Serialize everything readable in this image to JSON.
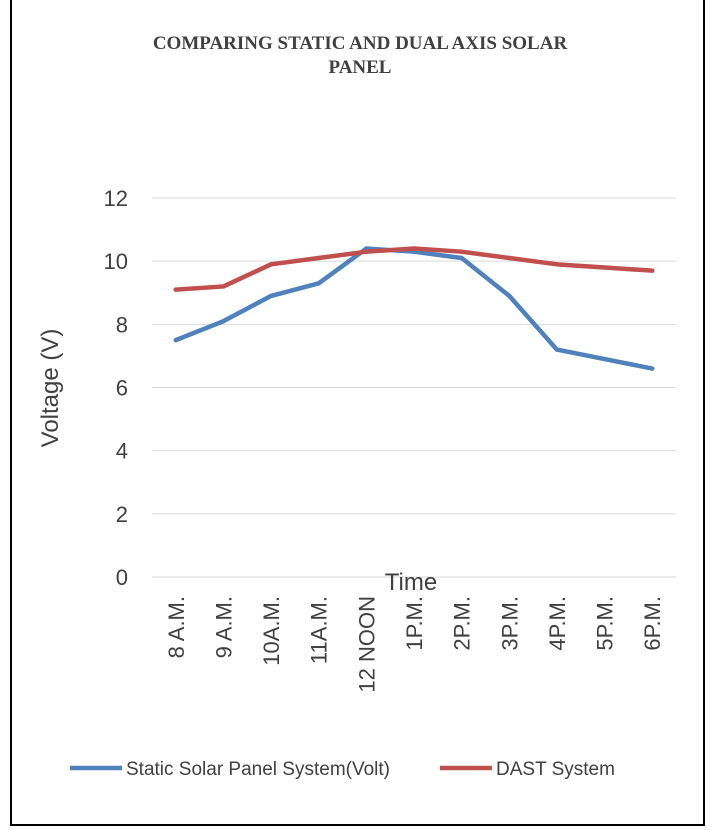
{
  "chart_data": {
    "type": "line",
    "title_line1": "COMPARING STATIC AND DUAL AXIS SOLAR",
    "title_line2": "PANEL",
    "xlabel": "Time",
    "ylabel": "Voltage (V)",
    "ylim": [
      0,
      12
    ],
    "yticks": [
      0,
      2,
      4,
      6,
      8,
      10,
      12
    ],
    "grid": true,
    "legend_position": "bottom",
    "categories": [
      "8 A.M.",
      "9 A.M.",
      "10A.M.",
      "11A.M.",
      "12 NOON",
      "1P.M.",
      "2P.M.",
      "3P.M.",
      "4P.M.",
      "5P.M.",
      "6P.M."
    ],
    "series": [
      {
        "name": "Static Solar Panel System(Volt)",
        "color": "#4f81bd",
        "values": [
          7.5,
          8.1,
          8.9,
          9.3,
          10.4,
          10.3,
          10.1,
          8.9,
          7.2,
          6.9,
          6.6
        ]
      },
      {
        "name": "DAST System",
        "color": "#c0504d",
        "values": [
          9.1,
          9.2,
          9.9,
          10.1,
          10.3,
          10.4,
          10.3,
          10.1,
          9.9,
          9.8,
          9.7
        ]
      }
    ]
  }
}
